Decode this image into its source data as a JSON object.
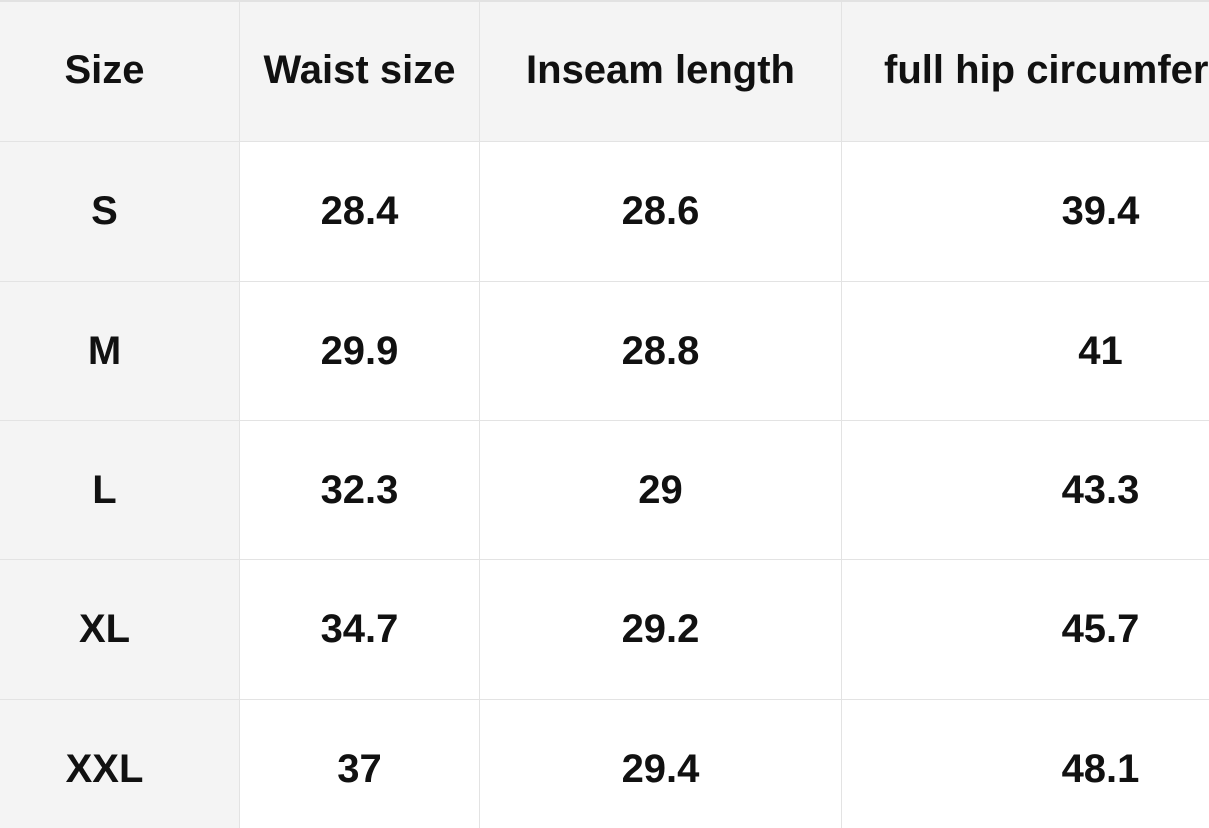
{
  "table": {
    "header": [
      "Size",
      "Waist size",
      "Inseam length",
      "full hip circumfer"
    ],
    "rows": [
      [
        "S",
        28.4,
        28.6,
        39.4
      ],
      [
        "M",
        29.9,
        28.8,
        41
      ],
      [
        "L",
        32.3,
        29,
        43.3
      ],
      [
        "XL",
        34.7,
        29.2,
        45.7
      ],
      [
        "XXL",
        37,
        29.4,
        48.1
      ]
    ]
  }
}
